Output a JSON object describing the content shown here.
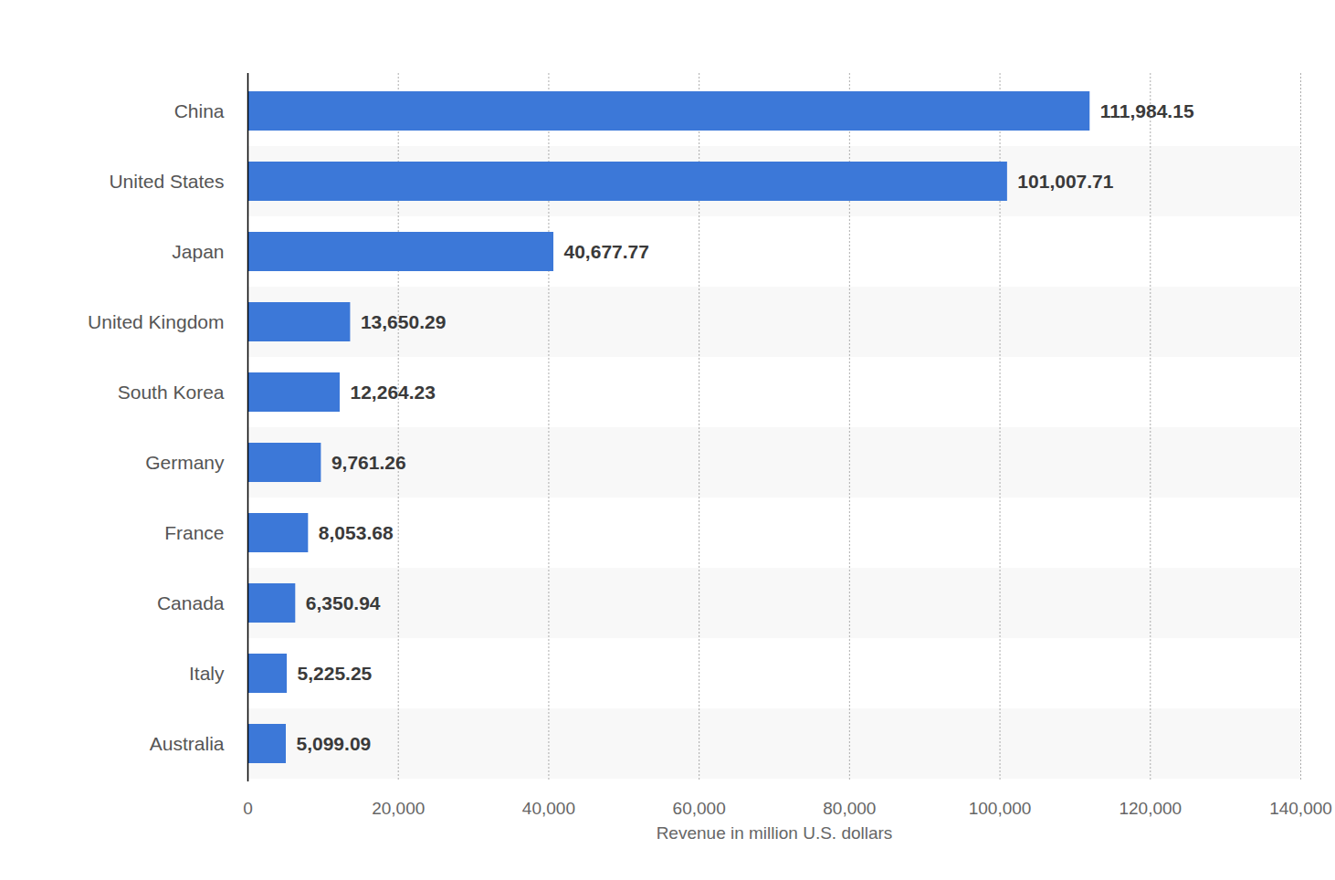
{
  "chart_data": {
    "type": "bar",
    "orientation": "horizontal",
    "x_label": "Revenue in million U.S. dollars",
    "categories": [
      "China",
      "United States",
      "Japan",
      "United Kingdom",
      "South Korea",
      "Germany",
      "France",
      "Canada",
      "Italy",
      "Australia"
    ],
    "values": [
      111984.15,
      101007.71,
      40677.77,
      13650.29,
      12264.23,
      9761.26,
      8053.68,
      6350.94,
      5225.25,
      5099.09
    ],
    "value_labels": [
      "111,984.15",
      "101,007.71",
      "40,677.77",
      "13,650.29",
      "12,264.23",
      "9,761.26",
      "8,053.68",
      "6,350.94",
      "5,225.25",
      "5,099.09"
    ],
    "data_labels": true,
    "color": "#3c78d8",
    "xlim": [
      0,
      140000
    ],
    "xticks": [
      0,
      {
        "value": 20000,
        "label": "20,000"
      },
      {
        "value": 40000,
        "label": "40,000"
      },
      {
        "value": 60000,
        "label": "60,000"
      },
      {
        "value": 80000,
        "label": "80,000"
      },
      {
        "value": 100000,
        "label": "100,000"
      },
      {
        "value": 120000,
        "label": "120,000"
      },
      {
        "value": 140000,
        "label": "140,000"
      }
    ],
    "grid": true
  }
}
